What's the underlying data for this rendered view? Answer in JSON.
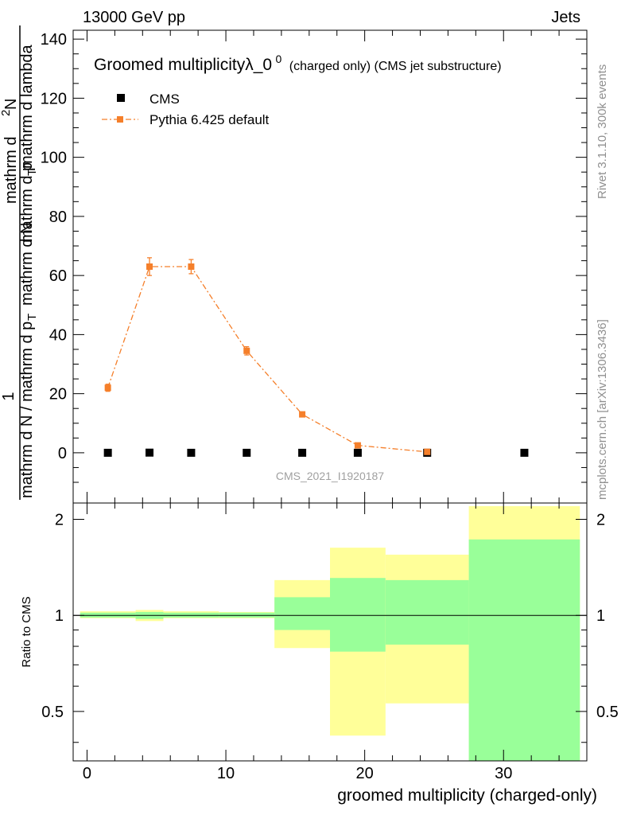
{
  "header": {
    "left": "13000 GeV pp",
    "right": "Jets"
  },
  "side_text": {
    "rivet": "Rivet 3.1.10,  300k events",
    "mcplots": "mcplots.cern.ch [arXiv:1306.3436]"
  },
  "colors": {
    "mc": "#f57f2a",
    "band_outer": "#ffff99",
    "band_inner": "#99ff99",
    "data": "#000000",
    "watermark": "#a0a0a0"
  },
  "chart_data": [
    {
      "type": "scatter",
      "title": "Groomed multiplicityλ_0",
      "title_superscript": "0",
      "title_suffix": "(charged only) (CMS jet substructure)",
      "ylabel_lines": [
        "1",
        "mathrm d N / mathrm d p",
        "T",
        "mathrm d N",
        "mathrm d p",
        "T",
        "mathrm d lambda",
        "mathrm d",
        "2",
        "N"
      ],
      "ylim": [
        -17,
        143
      ],
      "xlim": [
        -1,
        36
      ],
      "yticks": [
        0,
        20,
        40,
        60,
        80,
        100,
        120,
        140
      ],
      "watermark": "CMS_2021_I1920187",
      "legend_position": "top-left",
      "series": [
        {
          "name": "CMS",
          "marker": "square",
          "x": [
            1.5,
            4.5,
            7.5,
            11.5,
            15.5,
            19.5,
            24.5,
            31.5
          ],
          "y": [
            0.0,
            0.05,
            0.0,
            0.0,
            0.0,
            0.0,
            0.0,
            0.0
          ]
        },
        {
          "name": "Pythia 6.425 default",
          "marker": "square",
          "line": "dash-dot",
          "x": [
            1.5,
            4.5,
            7.5,
            11.5,
            15.5,
            19.5,
            24.5
          ],
          "y": [
            22.0,
            63.0,
            63.0,
            34.5,
            13.0,
            2.5,
            0.3
          ],
          "yerr": [
            1.2,
            3.0,
            2.4,
            1.4,
            0.6,
            0.3,
            0.1
          ]
        }
      ]
    },
    {
      "type": "area",
      "ylabel": "Ratio to CMS",
      "xlabel": "groomed multiplicity (charged-only)",
      "ylim": [
        0.35,
        2.25
      ],
      "xlim": [
        -1,
        36
      ],
      "yticks": [
        0.5,
        1,
        2
      ],
      "xticks": [
        0,
        10,
        20,
        30
      ],
      "reference_line": 1,
      "bins": [
        {
          "x0": -0.5,
          "x1": 3.5,
          "outer": [
            0.98,
            1.03
          ],
          "inner": [
            0.985,
            1.02
          ]
        },
        {
          "x0": 3.5,
          "x1": 5.5,
          "outer": [
            0.96,
            1.04
          ],
          "inner": [
            0.975,
            1.025
          ]
        },
        {
          "x0": 5.5,
          "x1": 9.5,
          "outer": [
            0.98,
            1.03
          ],
          "inner": [
            0.985,
            1.02
          ]
        },
        {
          "x0": 9.5,
          "x1": 13.5,
          "outer": [
            0.98,
            1.025
          ],
          "inner": [
            0.985,
            1.02
          ]
        },
        {
          "x0": 13.5,
          "x1": 17.5,
          "outer": [
            0.79,
            1.29
          ],
          "inner": [
            0.9,
            1.14
          ]
        },
        {
          "x0": 17.5,
          "x1": 21.5,
          "outer": [
            0.42,
            1.63
          ],
          "inner": [
            0.77,
            1.31
          ]
        },
        {
          "x0": 21.5,
          "x1": 27.5,
          "outer": [
            0.53,
            1.55
          ],
          "inner": [
            0.81,
            1.29
          ]
        },
        {
          "x0": 27.5,
          "x1": 35.5,
          "outer": [
            0.35,
            2.2
          ],
          "inner": [
            0.35,
            1.73
          ]
        }
      ]
    }
  ]
}
